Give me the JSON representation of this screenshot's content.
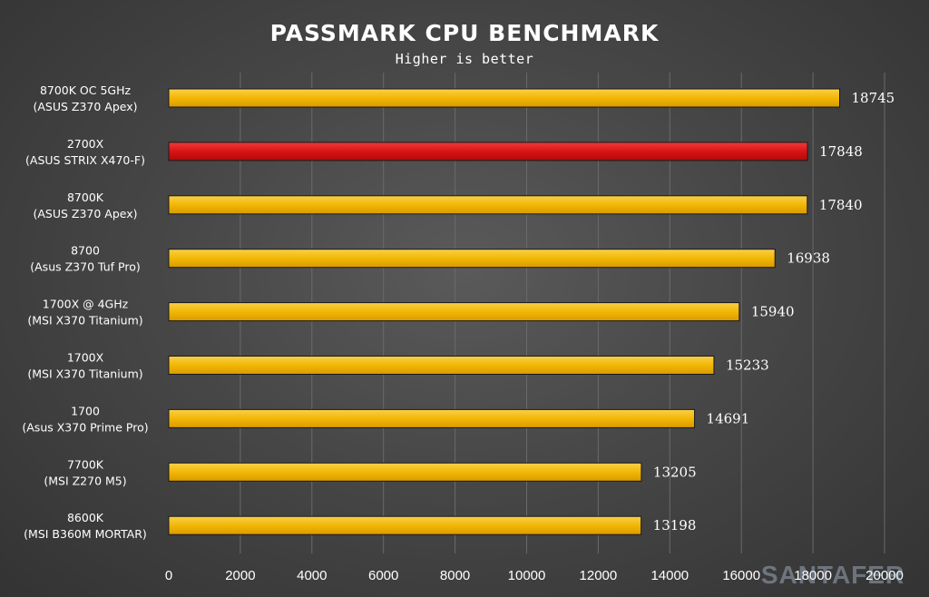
{
  "chart_data": {
    "type": "bar",
    "orientation": "horizontal",
    "title": "PASSMARK CPU BENCHMARK",
    "subtitle": "Higher is better",
    "categories": [
      [
        "8700K OC 5GHz",
        "(ASUS Z370 Apex)"
      ],
      [
        "2700X",
        "(ASUS STRIX X470-F)"
      ],
      [
        "8700K",
        "(ASUS Z370 Apex)"
      ],
      [
        "8700",
        "(Asus Z370 Tuf Pro)"
      ],
      [
        "1700X @ 4GHz",
        "(MSI X370 Titanium)"
      ],
      [
        "1700X",
        "(MSI X370 Titanium)"
      ],
      [
        "1700",
        "(Asus X370 Prime Pro)"
      ],
      [
        "7700K",
        "(MSI Z270 M5)"
      ],
      [
        "8600K",
        "(MSI B360M MORTAR)"
      ]
    ],
    "values": [
      18745,
      17848,
      17840,
      16938,
      15940,
      15233,
      14691,
      13205,
      13198
    ],
    "highlight_index": 1,
    "xlim": [
      0,
      20000
    ],
    "xticks": [
      0,
      2000,
      4000,
      6000,
      8000,
      10000,
      12000,
      14000,
      16000,
      18000,
      20000
    ],
    "grid": true,
    "legend": "none"
  },
  "colors": {
    "bar_default": "#f2b705",
    "bar_highlight": "#d81414",
    "background": "#474747"
  },
  "watermark": "SANTAFER"
}
